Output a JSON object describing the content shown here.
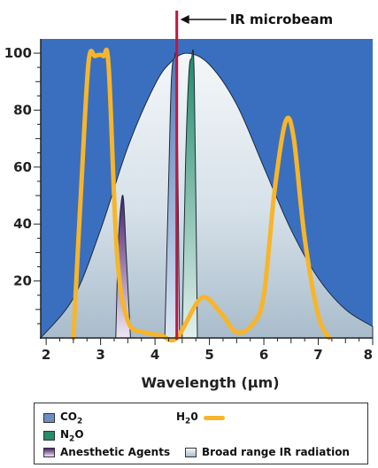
{
  "chart_data": {
    "type": "area",
    "title": "",
    "xlabel": "Wavelength (µm)",
    "ylabel": "",
    "xlim": [
      1.9,
      8.0
    ],
    "ylim": [
      0,
      105
    ],
    "x_ticks": [
      2,
      3,
      4,
      5,
      6,
      7,
      8
    ],
    "y_ticks": [
      20,
      40,
      60,
      80,
      100
    ],
    "grid": false,
    "legend_position": "bottom",
    "background_color": "#3a6fc0",
    "series": [
      {
        "name": "Broad range IR radiation",
        "kind": "area",
        "color": "#dde7ee",
        "x": [
          1.9,
          2.5,
          3.0,
          3.5,
          4.0,
          4.3,
          4.6,
          5.0,
          5.5,
          6.0,
          6.5,
          7.0,
          7.5,
          8.0
        ],
        "y": [
          0,
          14,
          38,
          67,
          89,
          97,
          100,
          96,
          82,
          60,
          38,
          21,
          10,
          4
        ]
      },
      {
        "name": "CO₂",
        "kind": "band",
        "color": "#6b8fc4",
        "x": [
          4.18,
          4.25,
          4.3,
          4.35,
          4.4,
          4.45
        ],
        "y": [
          0,
          55,
          90,
          98,
          90,
          0
        ]
      },
      {
        "name": "N₂O",
        "kind": "band",
        "color": "#2a8a6e",
        "x": [
          4.5,
          4.56,
          4.62,
          4.67,
          4.72,
          4.78
        ],
        "y": [
          0,
          60,
          92,
          98,
          92,
          0
        ]
      },
      {
        "name": "Anesthetic Agents",
        "kind": "band",
        "color": "#5b2a7a",
        "x": [
          3.28,
          3.32,
          3.37,
          3.42,
          3.47,
          3.55
        ],
        "y": [
          0,
          30,
          46,
          49,
          30,
          0
        ]
      },
      {
        "name": "H₂O",
        "kind": "line",
        "color": "#f7b52a",
        "x": [
          2.5,
          2.65,
          2.78,
          2.9,
          3.05,
          3.15,
          3.3,
          3.5,
          3.8,
          4.1,
          4.4,
          4.85,
          5.2,
          5.5,
          5.8,
          6.0,
          6.2,
          6.4,
          6.55,
          6.75,
          7.0,
          7.2
        ],
        "y": [
          0,
          55,
          97,
          99,
          99,
          95,
          30,
          6,
          2,
          1,
          0,
          14,
          9,
          2,
          5,
          15,
          52,
          76,
          70,
          35,
          8,
          0
        ]
      }
    ],
    "annotations": [
      {
        "label": "IR microbeam",
        "x": 4.4,
        "color": "#c0163e"
      }
    ]
  },
  "legend": {
    "co2": "CO",
    "co2_sub": "2",
    "h2o": "H",
    "h2o_sub": "2",
    "h2o_tail": "0",
    "n2o": "N",
    "n2o_sub": "2",
    "n2o_tail": "O",
    "anesthetic": "Anesthetic Agents",
    "broad": "Broad range IR radiation"
  }
}
